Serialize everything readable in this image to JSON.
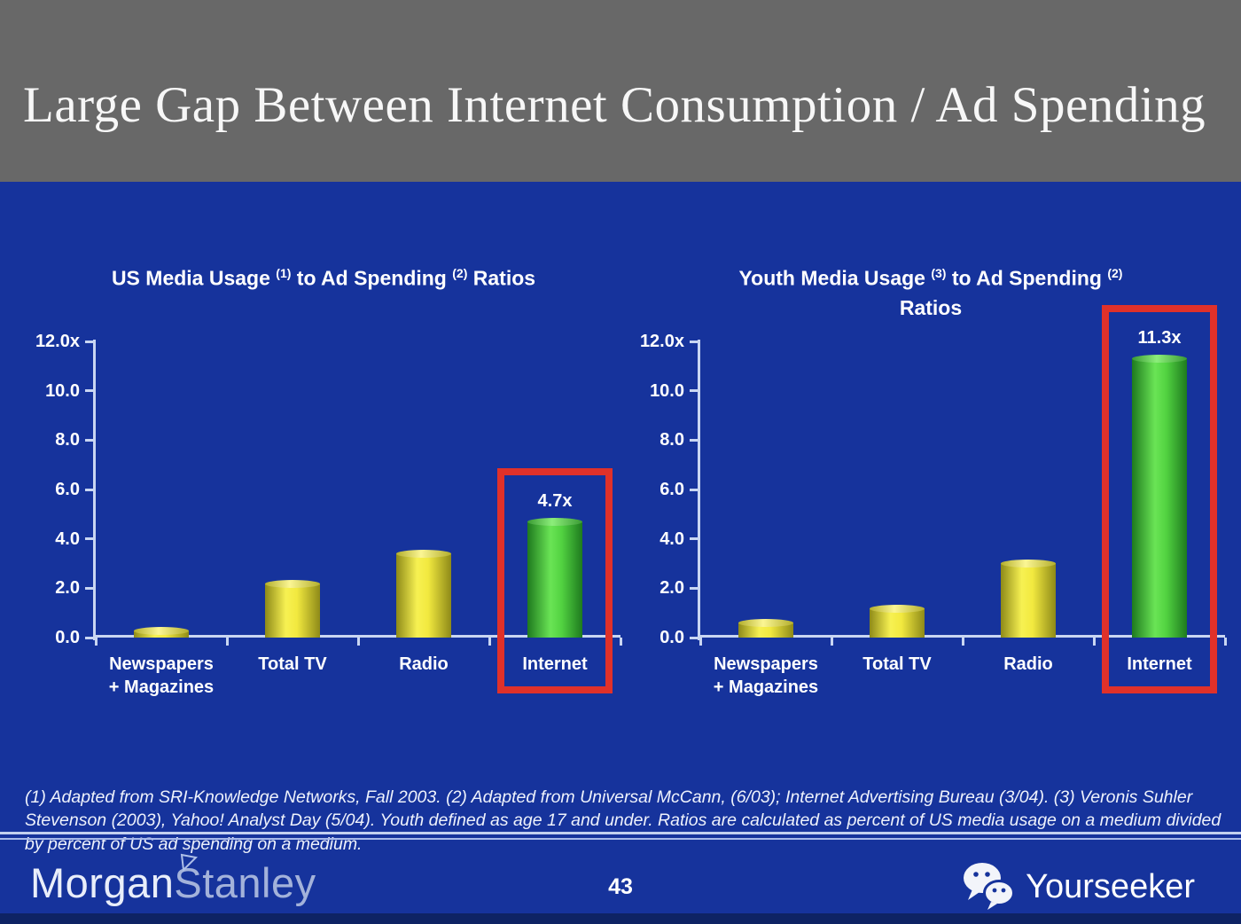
{
  "slide": {
    "title": "Large Gap Between Internet Consumption / Ad Spending",
    "footnote": "(1) Adapted from SRI-Knowledge Networks, Fall 2003.  (2) Adapted from Universal McCann, (6/03); Internet Advertising Bureau (3/04). (3) Veronis Suhler Stevenson (2003), Yahoo! Analyst Day (5/04).  Youth defined as age 17 and under.  Ratios are calculated as percent of US media usage on a medium divided by percent of US ad spending on a medium.",
    "page_number": "43"
  },
  "footer": {
    "brand_left_part1": "Morgan",
    "brand_left_part2": "Stanley",
    "brand_right": "Yourseeker",
    "brand_right_icon": "wechat-icon"
  },
  "colors": {
    "background": "#16339C",
    "header_gray": "#686868",
    "accent_red": "#E0312A",
    "bar_yellow": "#F2E93F",
    "bar_green": "#52D341",
    "axis": "#C9D6F2",
    "bottom_strip": "#0E2364"
  },
  "chart_data": [
    {
      "type": "bar",
      "title": "US Media Usage (1) to Ad Spending (2) Ratios",
      "title_segments": [
        {
          "t": "US Media Usage "
        },
        {
          "sup": "(1)"
        },
        {
          "t": " to Ad Spending "
        },
        {
          "sup": "(2)"
        },
        {
          "t": " Ratios"
        }
      ],
      "categories": [
        "Newspapers + Magazines",
        "Total TV",
        "Radio",
        "Internet"
      ],
      "category_lines": [
        [
          "Newspapers",
          "+ Magazines"
        ],
        [
          "Total TV"
        ],
        [
          "Radio"
        ],
        [
          "Internet"
        ]
      ],
      "values": [
        0.3,
        2.2,
        3.4,
        4.7
      ],
      "bar_colors": [
        "yellow",
        "yellow",
        "yellow",
        "green"
      ],
      "data_labels": [
        null,
        null,
        null,
        "4.7x"
      ],
      "highlight_index": 3,
      "ytick_labels": [
        "12.0x",
        "10.0",
        "8.0",
        "6.0",
        "4.0",
        "2.0",
        "0.0"
      ],
      "ytick_values": [
        12,
        10,
        8,
        6,
        4,
        2,
        0
      ],
      "ylim": [
        0,
        12
      ],
      "xlabel": "",
      "ylabel": "",
      "grid": false,
      "legend": false
    },
    {
      "type": "bar",
      "title": "Youth Media Usage (3) to Ad Spending (2) Ratios",
      "title_segments": [
        {
          "t": "Youth Media Usage "
        },
        {
          "sup": "(3)"
        },
        {
          "t": " to Ad Spending "
        },
        {
          "sup": "(2)"
        },
        {
          "br": true
        },
        {
          "t": "Ratios"
        }
      ],
      "categories": [
        "Newspapers + Magazines",
        "Total TV",
        "Radio",
        "Internet"
      ],
      "category_lines": [
        [
          "Newspapers",
          "+ Magazines"
        ],
        [
          "Total TV"
        ],
        [
          "Radio"
        ],
        [
          "Internet"
        ]
      ],
      "values": [
        0.6,
        1.2,
        3.0,
        11.3
      ],
      "bar_colors": [
        "yellow",
        "yellow",
        "yellow",
        "green"
      ],
      "data_labels": [
        null,
        null,
        null,
        "11.3x"
      ],
      "highlight_index": 3,
      "ytick_labels": [
        "12.0x",
        "10.0",
        "8.0",
        "6.0",
        "4.0",
        "2.0",
        "0.0"
      ],
      "ytick_values": [
        12,
        10,
        8,
        6,
        4,
        2,
        0
      ],
      "ylim": [
        0,
        12
      ],
      "xlabel": "",
      "ylabel": "",
      "grid": false,
      "legend": false
    }
  ]
}
